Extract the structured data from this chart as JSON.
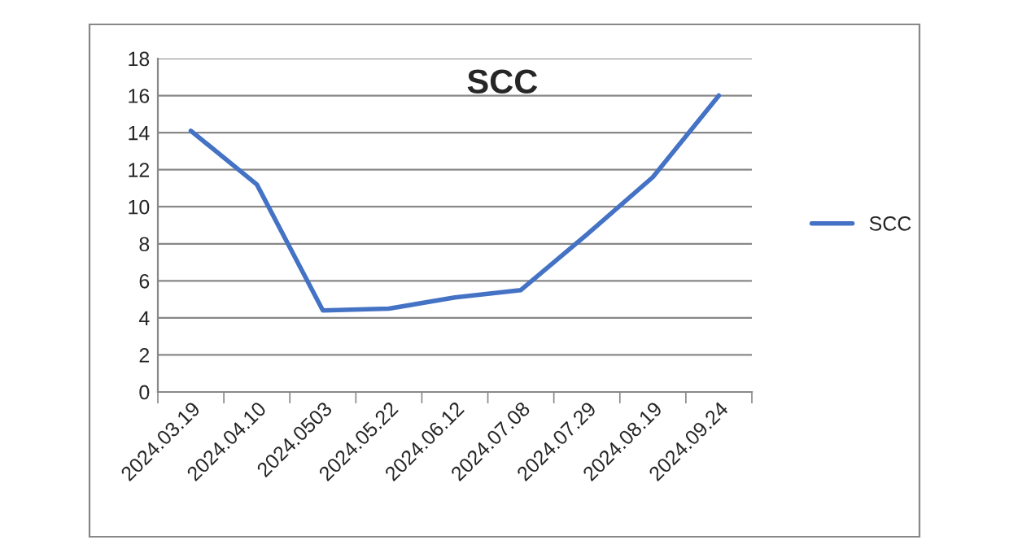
{
  "chart_data": {
    "type": "line",
    "title": "SCC",
    "categories": [
      "2024.03.19",
      "2024.04.10",
      "2024.0503",
      "2024.05.22",
      "2024.06.12",
      "2024.07.08",
      "2024.07.29",
      "2024.08.19",
      "2024.09.24"
    ],
    "series": [
      {
        "name": "SCC",
        "color": "#4472c4",
        "values": [
          14.1,
          11.2,
          4.4,
          4.5,
          5.1,
          5.5,
          8.5,
          11.6,
          16
        ]
      }
    ],
    "ylim": [
      0,
      18
    ],
    "yticks": [
      0,
      2,
      4,
      6,
      8,
      10,
      12,
      14,
      16,
      18
    ],
    "grid": "y",
    "legend": "right",
    "marker": "none",
    "line_style": "solid"
  }
}
